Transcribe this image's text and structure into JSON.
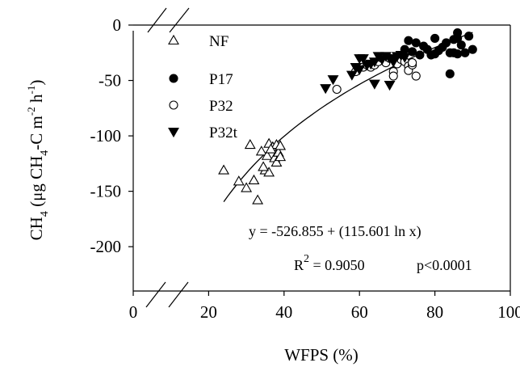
{
  "chart_data": {
    "type": "scatter",
    "xlabel": "WFPS (%)",
    "ylabel": {
      "a": "CH",
      "b": "4",
      "c": " (μg CH",
      "d": "4",
      "e": "-C m",
      "f": "-2",
      "g": " h",
      "h": "-1",
      "i": ")"
    },
    "xlim": [
      0,
      100
    ],
    "ylim": [
      -240,
      0
    ],
    "x_ticks": [
      "0",
      "20",
      "40",
      "60",
      "80",
      "100"
    ],
    "y_ticks": [
      "0",
      "-50",
      "-100",
      "-150",
      "-200"
    ],
    "axis_breaks": true,
    "legend_position": "top-left",
    "series": [
      {
        "name": "NF",
        "marker": "open-triangle",
        "points": [
          [
            24,
            -131
          ],
          [
            28,
            -141
          ],
          [
            30,
            -147
          ],
          [
            31,
            -108
          ],
          [
            32,
            -140
          ],
          [
            33,
            -158
          ],
          [
            34,
            -114
          ],
          [
            35,
            -131
          ],
          [
            35.5,
            -118
          ],
          [
            36,
            -107
          ],
          [
            36,
            -133
          ],
          [
            37,
            -110
          ],
          [
            37.5,
            -120
          ],
          [
            38,
            -124
          ],
          [
            38,
            -108
          ],
          [
            38.5,
            -115
          ],
          [
            39,
            -119
          ],
          [
            39,
            -109
          ],
          [
            36.5,
            -112
          ],
          [
            34.5,
            -128
          ]
        ]
      },
      {
        "name": "P17",
        "marker": "filled-circle",
        "points": [
          [
            70,
            -30
          ],
          [
            72,
            -22
          ],
          [
            73,
            -14
          ],
          [
            74,
            -24
          ],
          [
            75,
            -16
          ],
          [
            76,
            -27
          ],
          [
            77,
            -19
          ],
          [
            78,
            -22
          ],
          [
            79,
            -27
          ],
          [
            80,
            -26
          ],
          [
            80,
            -12
          ],
          [
            81,
            -23
          ],
          [
            82,
            -20
          ],
          [
            83,
            -16
          ],
          [
            84,
            -25
          ],
          [
            84,
            -44
          ],
          [
            85,
            -25
          ],
          [
            85,
            -13
          ],
          [
            86,
            -12
          ],
          [
            86,
            -7
          ],
          [
            86,
            -26
          ],
          [
            87,
            -18
          ],
          [
            88,
            -25
          ],
          [
            89,
            -10
          ],
          [
            90,
            -22
          ]
        ]
      },
      {
        "name": "P32",
        "marker": "open-circle",
        "points": [
          [
            54,
            -58
          ],
          [
            59,
            -42
          ],
          [
            61,
            -38
          ],
          [
            62,
            -36
          ],
          [
            63,
            -38
          ],
          [
            64,
            -36
          ],
          [
            65,
            -33
          ],
          [
            66,
            -30
          ],
          [
            67,
            -34
          ],
          [
            68,
            -30
          ],
          [
            69,
            -42
          ],
          [
            69,
            -46
          ],
          [
            70,
            -35
          ],
          [
            71,
            -31
          ],
          [
            72,
            -33
          ],
          [
            73,
            -37
          ],
          [
            73,
            -41
          ],
          [
            74,
            -36
          ],
          [
            74,
            -34
          ],
          [
            75,
            -46
          ]
        ]
      },
      {
        "name": "P32t",
        "marker": "filled-triangle",
        "points": [
          [
            51,
            -57
          ],
          [
            53,
            -49
          ],
          [
            58,
            -45
          ],
          [
            59,
            -38
          ],
          [
            60,
            -30
          ],
          [
            60,
            -40
          ],
          [
            61,
            -30
          ],
          [
            62,
            -36
          ],
          [
            63,
            -35
          ],
          [
            64,
            -53
          ],
          [
            64,
            -33
          ],
          [
            65,
            -28
          ],
          [
            66,
            -31
          ],
          [
            67,
            -28
          ],
          [
            68,
            -54
          ],
          [
            68,
            -30
          ],
          [
            69,
            -33
          ],
          [
            70,
            -28
          ],
          [
            71,
            -27
          ],
          [
            72,
            -29
          ]
        ]
      }
    ],
    "fit": {
      "type": "log",
      "a": -526.855,
      "b": 115.601,
      "x_range": [
        24,
        90
      ]
    },
    "annotations": {
      "equation": "y = -526.855 +  (115.601 ln x)",
      "r2_label": "R",
      "r2_exp": "2",
      "r2_value": " = 0.9050",
      "p_value": "p<0.0001"
    }
  }
}
